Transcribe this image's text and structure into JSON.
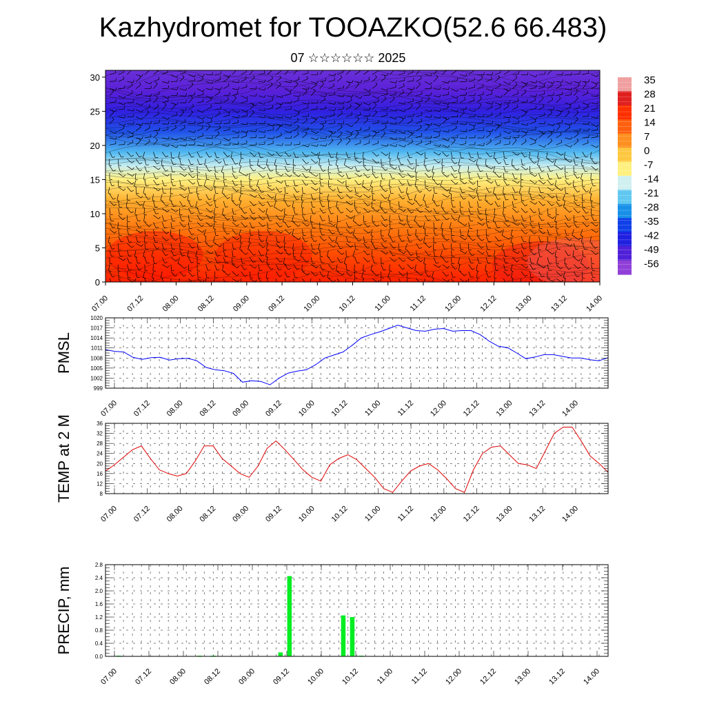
{
  "page": {
    "title": "Kazhydromet for TOOAZKO(52.6 66.483)",
    "subtitle": "07 ☆☆☆☆☆☆ 2025"
  },
  "time_ticks": [
    "07.00",
    "07.12",
    "08.00",
    "08.12",
    "09.00",
    "09.12",
    "10.00",
    "10.12",
    "11.00",
    "11.12",
    "12.00",
    "12.12",
    "13.00",
    "13.12",
    "14.00"
  ],
  "chart_data": [
    {
      "type": "heatmap",
      "name": "temperature-wind-cross-section",
      "x": [
        "07.00",
        "07.12",
        "08.00",
        "08.12",
        "09.00",
        "09.12",
        "10.00",
        "10.12",
        "11.00",
        "11.12",
        "12.00",
        "12.12",
        "13.00",
        "13.12",
        "14.00"
      ],
      "yticks": [
        0,
        5,
        10,
        15,
        20,
        25,
        30
      ],
      "ylim": [
        0,
        31
      ],
      "colorbar": {
        "labels": [
          "35",
          "28",
          "21",
          "14",
          "7",
          "0",
          "-7",
          "-14",
          "-21",
          "-28",
          "-35",
          "-42",
          "-49",
          "-56"
        ],
        "colors": [
          "#f0a0a0",
          "#e02020",
          "#ff3000",
          "#ff6010",
          "#ff9020",
          "#ffc840",
          "#fff080",
          "#d0f0f0",
          "#60c8f0",
          "#1890e8",
          "#1040e8",
          "#2020e0",
          "#5020d8",
          "#9040d8"
        ]
      },
      "level_profile": [
        {
          "level": 0,
          "color": "#ff2000"
        },
        {
          "level": 4,
          "color": "#ff4a00"
        },
        {
          "level": 8,
          "color": "#ff7a10"
        },
        {
          "level": 12,
          "color": "#ffb030"
        },
        {
          "level": 15,
          "color": "#fff080"
        },
        {
          "level": 17,
          "color": "#c8eef0"
        },
        {
          "level": 19,
          "color": "#50b8f0"
        },
        {
          "level": 22,
          "color": "#2050e8"
        },
        {
          "level": 25,
          "color": "#3020e0"
        },
        {
          "level": 28,
          "color": "#5a20d8"
        },
        {
          "level": 31,
          "color": "#6a30d8"
        }
      ]
    },
    {
      "type": "line",
      "name": "pmsl",
      "ylabel": "PMSL",
      "ylim": [
        999,
        1020
      ],
      "yticks": [
        999,
        1002,
        1005,
        1008,
        1011,
        1014,
        1017,
        1020
      ],
      "color": "#0000ff",
      "x_range": [
        0,
        14
      ],
      "values": [
        1010.5,
        1010,
        1009.8,
        1008.2,
        1007.6,
        1008.1,
        1008.2,
        1007.4,
        1007.8,
        1007.9,
        1007.2,
        1005.2,
        1004.5,
        1004.2,
        1003.4,
        1000.8,
        1001.2,
        1001,
        1000,
        1002,
        1003.5,
        1004.1,
        1004.5,
        1006,
        1008,
        1008.9,
        1009.8,
        1011.8,
        1014,
        1015,
        1015.8,
        1016.8,
        1017.8,
        1017,
        1016.2,
        1016,
        1016.6,
        1016.8,
        1016,
        1016.2,
        1016.2,
        1015,
        1013,
        1011.5,
        1011.1,
        1009.5,
        1007.8,
        1008.3,
        1009,
        1009,
        1008.5,
        1008,
        1008,
        1007.5,
        1007.2,
        1008.1
      ]
    },
    {
      "type": "line",
      "name": "temp-2m",
      "ylabel": "TEMP at 2 M",
      "ylim": [
        8,
        36
      ],
      "yticks": [
        8,
        12,
        16,
        20,
        24,
        28,
        32,
        36
      ],
      "color": "#dd0000",
      "x_range": [
        0,
        14
      ],
      "values": [
        17,
        19.5,
        22.5,
        25.5,
        27,
        22,
        17.5,
        16,
        15,
        16,
        21,
        27,
        27,
        22,
        19,
        16,
        14.5,
        19,
        26,
        29,
        25.5,
        21.5,
        17.5,
        14.5,
        13,
        19.5,
        22,
        23.5,
        21.5,
        18,
        14.5,
        10,
        8.5,
        13,
        17,
        19,
        20,
        17.5,
        14,
        10,
        8.5,
        17.5,
        24,
        26.5,
        27,
        23.5,
        20,
        19.5,
        18,
        25,
        32,
        34.5,
        34.5,
        29,
        23,
        20,
        16.5
      ]
    },
    {
      "type": "bar",
      "name": "precip",
      "ylabel": "PRECIP, mm",
      "ylim": [
        0,
        2.8
      ],
      "yticks": [
        "0.0",
        "0.4",
        "0.8",
        "1.2",
        "1.6",
        "2.0",
        "2.4",
        "2.8"
      ],
      "color": "#00ee22",
      "x_range": [
        0,
        14
      ],
      "bar_width_hours": 3,
      "bars": [
        {
          "t": 0.375,
          "v": 0.02
        },
        {
          "t": 1.875,
          "v": 0.01
        },
        {
          "t": 2.625,
          "v": 0.02
        },
        {
          "t": 3.0,
          "v": 0.02
        },
        {
          "t": 4.875,
          "v": 0.12
        },
        {
          "t": 5.125,
          "v": 2.45
        },
        {
          "t": 6.625,
          "v": 1.25
        },
        {
          "t": 6.875,
          "v": 1.2
        },
        {
          "t": 7.125,
          "v": 0.02
        }
      ]
    }
  ]
}
